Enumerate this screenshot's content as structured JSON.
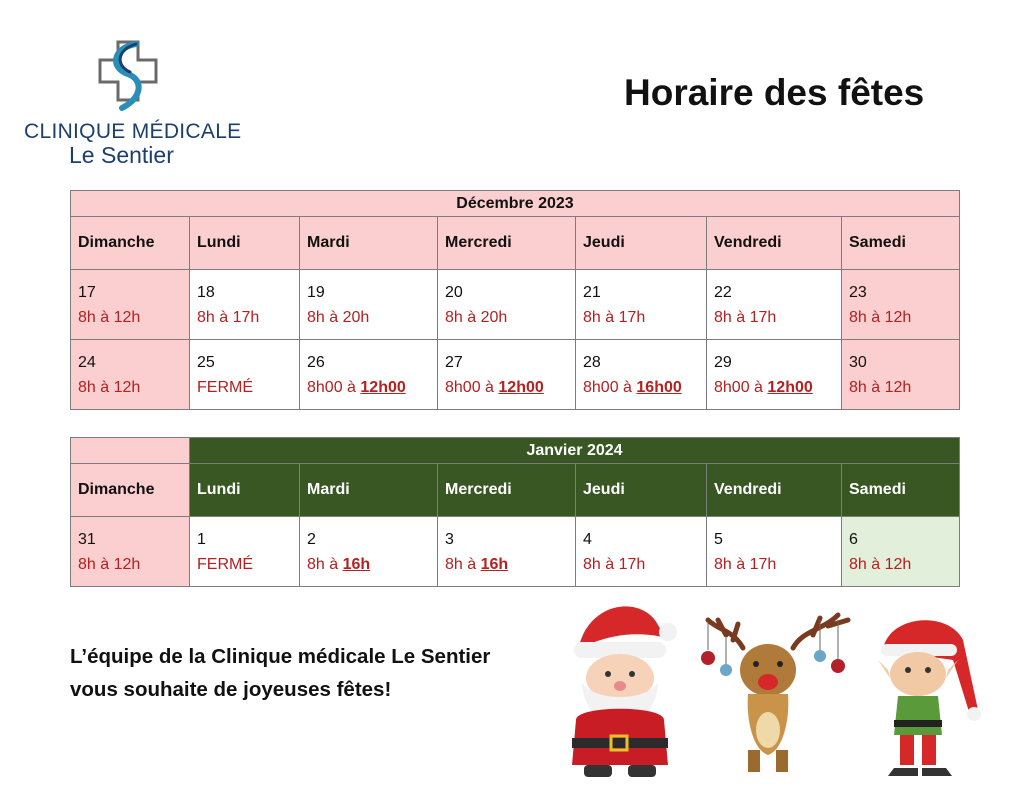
{
  "logo": {
    "line1": "CLINIQUE MÉDICALE",
    "line2": "Le Sentier",
    "colors": {
      "navy": "#1d3f6e",
      "teal": "#2a8fb8",
      "gray": "#666666"
    }
  },
  "title": "Horaire des fêtes",
  "december": {
    "month": "Décembre 2023",
    "days": [
      "Dimanche",
      "Lundi",
      "Mardi",
      "Mercredi",
      "Jeudi",
      "Vendredi",
      "Samedi"
    ],
    "weeks": [
      [
        {
          "num": "17",
          "pre": "8h à 12h",
          "bold": ""
        },
        {
          "num": "18",
          "pre": "8h à 17h",
          "bold": ""
        },
        {
          "num": "19",
          "pre": "8h à 20h",
          "bold": ""
        },
        {
          "num": "20",
          "pre": "8h à 20h",
          "bold": ""
        },
        {
          "num": "21",
          "pre": "8h à 17h",
          "bold": ""
        },
        {
          "num": "22",
          "pre": "8h à 17h",
          "bold": ""
        },
        {
          "num": "23",
          "pre": "8h à 12h",
          "bold": ""
        }
      ],
      [
        {
          "num": "24",
          "pre": "8h à 12h",
          "bold": ""
        },
        {
          "num": "25",
          "pre": "FERMÉ",
          "bold": ""
        },
        {
          "num": "26",
          "pre": "8h00 à ",
          "bold": "12h00"
        },
        {
          "num": "27",
          "pre": "8h00 à ",
          "bold": "12h00"
        },
        {
          "num": "28",
          "pre": "8h00 à ",
          "bold": "16h00"
        },
        {
          "num": "29",
          "pre": "8h00 à ",
          "bold": "12h00"
        },
        {
          "num": "30",
          "pre": "8h à 12h",
          "bold": ""
        }
      ]
    ]
  },
  "january": {
    "month": "Janvier 2024",
    "days": [
      "Dimanche",
      "Lundi",
      "Mardi",
      "Mercredi",
      "Jeudi",
      "Vendredi",
      "Samedi"
    ],
    "weeks": [
      [
        {
          "num": "31",
          "pre": "8h à 12h",
          "bold": ""
        },
        {
          "num": "1",
          "pre": "FERMÉ",
          "bold": ""
        },
        {
          "num": "2",
          "pre": "8h à ",
          "bold": "16h"
        },
        {
          "num": "3",
          "pre": "8h à ",
          "bold": "16h"
        },
        {
          "num": "4",
          "pre": "8h à 17h",
          "bold": ""
        },
        {
          "num": "5",
          "pre": "8h à 17h",
          "bold": ""
        },
        {
          "num": "6",
          "pre": "8h à 12h",
          "bold": ""
        }
      ]
    ]
  },
  "message": {
    "line1": "L’équipe de la Clinique médicale Le Sentier",
    "line2": "vous souhaite de joyeuses fêtes!"
  },
  "illustration": {
    "characters": [
      "santa-claus",
      "reindeer",
      "elf"
    ]
  },
  "colors": {
    "pink": "#fbcfcf",
    "darkgreen": "#385723",
    "lightgreen": "#e2efda",
    "hours_red": "#b52020"
  }
}
